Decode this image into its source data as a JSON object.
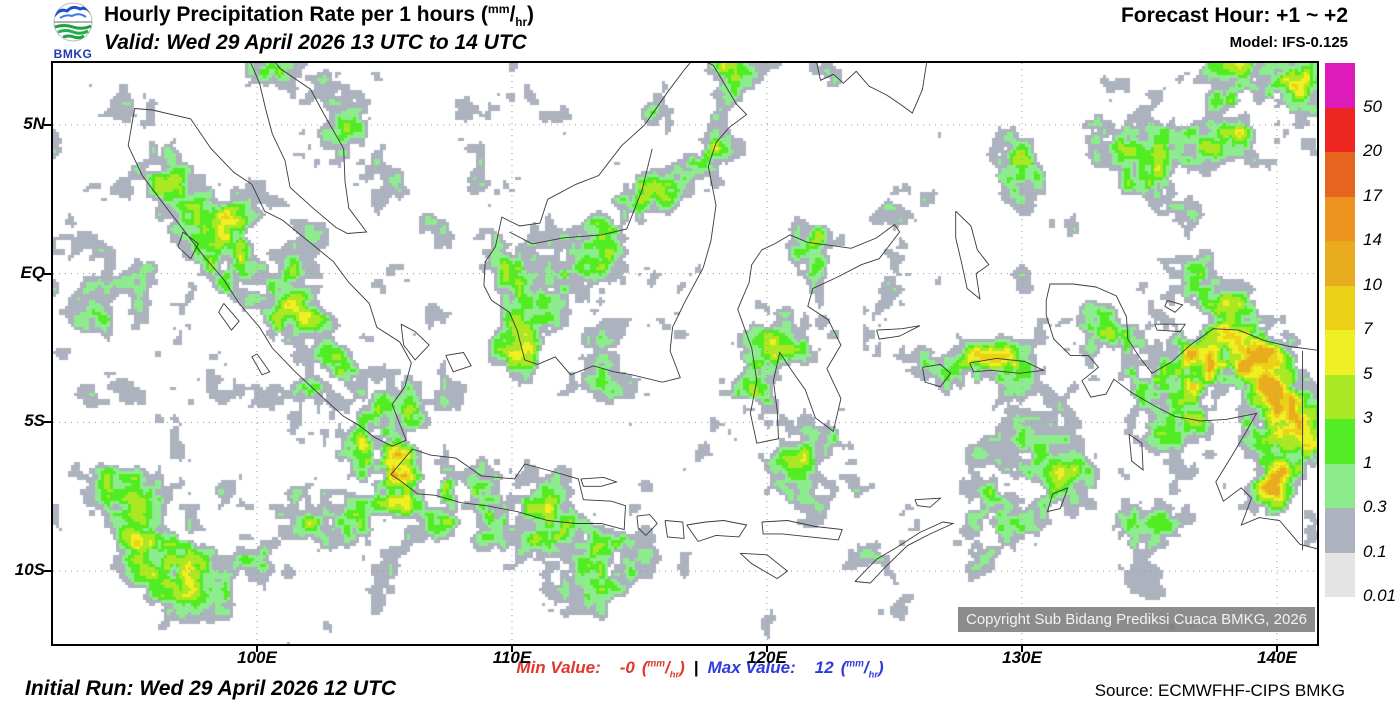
{
  "units": {
    "open": "(",
    "num": "mm",
    "sep": "/",
    "den": "hr",
    "close": ")"
  },
  "header": {
    "logo_text": "BMKG",
    "title_prefix": "Hourly Precipitation Rate per 1 hours ",
    "valid": "Valid: Wed 29 April 2026 13 UTC to 14 UTC",
    "forecast_hour": "Forecast Hour: +1 ~ +2",
    "model": "Model: IFS-0.125"
  },
  "footer": {
    "initial_run": "Initial Run: Wed 29 April 2026 12 UTC",
    "min_label": "Min Value:",
    "min_value": "-0",
    "separator": "|",
    "max_label": "Max Value:",
    "max_value": "12",
    "source": "Source: ECMWFHF-CIPS BMKG",
    "min_color": "#e0382e",
    "max_color": "#2f3bdc"
  },
  "map": {
    "copyright": "Copyright Sub Bidang Prediksi Cuaca BMKG, 2026",
    "extent": {
      "lon_min": 92.0,
      "lon_max": 141.57,
      "lat_max": 7.08,
      "lat_min": -12.45
    },
    "lat_ticks": [
      {
        "label": "5N",
        "lat": 5
      },
      {
        "label": "EQ",
        "lat": 0
      },
      {
        "label": "5S",
        "lat": -5
      },
      {
        "label": "10S",
        "lat": -10
      }
    ],
    "lon_ticks": [
      {
        "label": "100E",
        "lon": 100
      },
      {
        "label": "110E",
        "lon": 110
      },
      {
        "label": "120E",
        "lon": 120
      },
      {
        "label": "130E",
        "lon": 130
      },
      {
        "label": "140E",
        "lon": 140
      }
    ],
    "colorbar": {
      "unit": "mm/hr",
      "segments": [
        {
          "color": "#dd1bb8",
          "label": "50"
        },
        {
          "color": "#ec2520",
          "label": "20"
        },
        {
          "color": "#e66420",
          "label": "17"
        },
        {
          "color": "#ed9420",
          "label": "14"
        },
        {
          "color": "#e9ac1f",
          "label": "10"
        },
        {
          "color": "#ebd118",
          "label": "7"
        },
        {
          "color": "#efef25",
          "label": "5"
        },
        {
          "color": "#a9e822",
          "label": "3"
        },
        {
          "color": "#53ec25",
          "label": "1"
        },
        {
          "color": "#8cec8c",
          "label": "0.3"
        },
        {
          "color": "#acb2be",
          "label": "0.1"
        },
        {
          "color": "#e4e4e4",
          "label": "0.01"
        }
      ]
    },
    "rain_centers": [
      [
        96.0,
        3.5,
        1.4,
        0.55
      ],
      [
        95.6,
        5.3,
        0.9,
        0.45
      ],
      [
        98.6,
        1.8,
        1.2,
        0.5
      ],
      [
        99.3,
        0.3,
        1.3,
        0.55
      ],
      [
        101.0,
        -1.2,
        1.3,
        0.45
      ],
      [
        102.8,
        -3.8,
        1.6,
        0.55
      ],
      [
        104.8,
        -5.3,
        1.4,
        0.6
      ],
      [
        106.0,
        -6.6,
        1.3,
        0.65
      ],
      [
        104.5,
        -7.6,
        1.8,
        0.55
      ],
      [
        101.0,
        -7.8,
        1.8,
        0.45
      ],
      [
        97.0,
        -9.3,
        2.2,
        0.5
      ],
      [
        94.5,
        -7.5,
        1.5,
        0.4
      ],
      [
        108.3,
        -7.6,
        1.9,
        0.7
      ],
      [
        111.0,
        -8.6,
        1.8,
        0.5
      ],
      [
        113.8,
        -9.6,
        1.6,
        0.45
      ],
      [
        100.4,
        6.6,
        1.0,
        0.45
      ],
      [
        103.6,
        5.2,
        1.0,
        0.35
      ],
      [
        109.6,
        0.8,
        1.3,
        0.45
      ],
      [
        111.8,
        -0.3,
        1.3,
        0.45
      ],
      [
        110.5,
        -2.2,
        1.2,
        0.4
      ],
      [
        113.5,
        -3.1,
        1.4,
        0.5
      ],
      [
        113.8,
        1.4,
        1.3,
        0.45
      ],
      [
        115.0,
        2.9,
        1.2,
        0.5
      ],
      [
        115.8,
        5.6,
        0.9,
        0.5
      ],
      [
        117.8,
        4.0,
        1.0,
        0.4
      ],
      [
        119.0,
        -4.0,
        1.0,
        0.4
      ],
      [
        120.2,
        -2.3,
        1.1,
        0.4
      ],
      [
        121.7,
        0.8,
        1.1,
        0.4
      ],
      [
        123.2,
        -1.3,
        1.1,
        0.45
      ],
      [
        122.2,
        -4.8,
        1.1,
        0.4
      ],
      [
        125.2,
        1.8,
        1.1,
        0.45
      ],
      [
        127.2,
        0.2,
        1.2,
        0.45
      ],
      [
        128.6,
        -3.2,
        1.3,
        0.55
      ],
      [
        126.6,
        -3.3,
        1.0,
        0.4
      ],
      [
        124.8,
        -8.8,
        1.4,
        0.4
      ],
      [
        129.5,
        -7.8,
        1.5,
        0.45
      ],
      [
        132.5,
        -6.5,
        1.6,
        0.45
      ],
      [
        134.8,
        -8.3,
        1.6,
        0.45
      ],
      [
        131.6,
        -1.6,
        1.4,
        0.5
      ],
      [
        134.3,
        -2.9,
        1.6,
        0.6
      ],
      [
        136.8,
        -3.8,
        1.9,
        0.6
      ],
      [
        139.3,
        -3.9,
        2.0,
        0.65
      ],
      [
        140.8,
        -5.8,
        1.7,
        0.6
      ],
      [
        139.8,
        -7.6,
        1.7,
        0.5
      ],
      [
        136.5,
        -1.0,
        1.4,
        0.5
      ],
      [
        138.6,
        -1.8,
        1.5,
        0.5
      ],
      [
        135.5,
        2.8,
        1.8,
        0.5
      ],
      [
        138.5,
        5.5,
        1.8,
        0.55
      ],
      [
        140.8,
        6.8,
        1.4,
        0.55
      ],
      [
        133.0,
        5.5,
        1.5,
        0.4
      ],
      [
        129.5,
        3.5,
        1.5,
        0.4
      ],
      [
        122.5,
        6.3,
        1.1,
        0.45
      ],
      [
        118.5,
        6.8,
        1.0,
        0.4
      ],
      [
        117.2,
        -6.0,
        1.3,
        0.4
      ],
      [
        120.5,
        -6.5,
        1.2,
        0.35
      ],
      [
        123.0,
        -6.8,
        1.1,
        0.35
      ]
    ]
  }
}
